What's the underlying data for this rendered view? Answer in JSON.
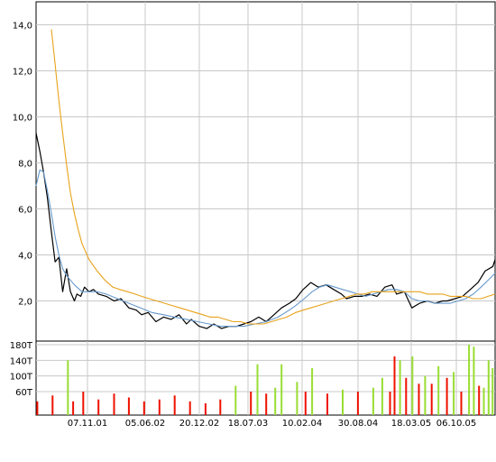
{
  "chart_data": [
    {
      "type": "line",
      "title": "",
      "xlabel": "",
      "ylabel": "",
      "ylim": [
        0.1,
        15.0
      ],
      "grid": true,
      "legend": "none",
      "x_tick_labels": [
        "07.11.01",
        "05.06.02",
        "20.12.02",
        "18.07.03",
        "10.02.04",
        "30.08.04",
        "18.03.05",
        "06.10.05"
      ],
      "y_tick_labels": [
        "2,0",
        "4,0",
        "6,0",
        "8,0",
        "10,0",
        "12,0",
        "14,0"
      ],
      "y_tick_values": [
        2,
        4,
        6,
        8,
        10,
        12,
        14
      ],
      "x_range": [
        "2001-04-10",
        "2006-04-15"
      ],
      "series": [
        {
          "color": "#000000",
          "x": [
            "2001-04-10",
            "2001-04-25",
            "2001-05-10",
            "2001-05-25",
            "2001-06-10",
            "2001-06-25",
            "2001-07-10",
            "2001-07-25",
            "2001-08-10",
            "2001-08-25",
            "2001-09-10",
            "2001-09-20",
            "2001-10-05",
            "2001-10-20",
            "2001-11-07",
            "2001-11-25",
            "2001-12-15",
            "2002-01-15",
            "2002-02-15",
            "2002-03-15",
            "2002-04-15",
            "2002-05-15",
            "2002-06-05",
            "2002-07-01",
            "2002-08-01",
            "2002-09-01",
            "2002-10-01",
            "2002-11-01",
            "2002-12-01",
            "2002-12-20",
            "2003-01-20",
            "2003-02-20",
            "2003-03-20",
            "2003-04-20",
            "2003-05-20",
            "2003-06-20",
            "2003-07-18",
            "2003-08-15",
            "2003-09-15",
            "2003-10-15",
            "2003-11-15",
            "2003-12-15",
            "2004-01-15",
            "2004-02-10",
            "2004-03-10",
            "2004-04-10",
            "2004-05-10",
            "2004-06-10",
            "2004-07-10",
            "2004-08-10",
            "2004-08-30",
            "2004-09-30",
            "2004-10-30",
            "2004-11-30",
            "2004-12-30",
            "2005-01-30",
            "2005-02-28",
            "2005-03-18",
            "2005-04-18",
            "2005-05-18",
            "2005-06-18",
            "2005-07-18",
            "2005-08-18",
            "2005-09-18",
            "2005-10-06",
            "2005-11-06",
            "2005-12-06",
            "2006-01-06",
            "2006-02-06",
            "2006-03-06",
            "2006-04-06",
            "2006-04-15"
          ],
          "values": [
            9.3,
            8.5,
            7.6,
            6.5,
            5.0,
            3.7,
            3.9,
            2.4,
            3.4,
            2.4,
            2.0,
            2.3,
            2.2,
            2.6,
            2.4,
            2.5,
            2.3,
            2.2,
            2.0,
            2.1,
            1.7,
            1.6,
            1.4,
            1.5,
            1.1,
            1.3,
            1.2,
            1.4,
            1.0,
            1.2,
            0.9,
            0.8,
            1.0,
            0.8,
            0.9,
            0.9,
            1.0,
            1.1,
            1.3,
            1.1,
            1.4,
            1.7,
            1.9,
            2.1,
            2.5,
            2.8,
            2.6,
            2.7,
            2.5,
            2.3,
            2.1,
            2.2,
            2.2,
            2.3,
            2.2,
            2.6,
            2.7,
            2.3,
            2.4,
            1.7,
            1.9,
            2.0,
            1.9,
            2.0,
            2.0,
            2.1,
            2.2,
            2.5,
            2.8,
            3.3,
            3.5,
            3.8
          ]
        },
        {
          "color": "#6699cc",
          "x": [
            "2001-04-10",
            "2001-04-25",
            "2001-05-10",
            "2001-05-25",
            "2001-06-10",
            "2001-06-25",
            "2001-07-10",
            "2001-07-25",
            "2001-08-10",
            "2001-09-10",
            "2001-10-10",
            "2001-11-07",
            "2001-12-10",
            "2002-01-15",
            "2002-03-01",
            "2002-04-15",
            "2002-06-01",
            "2002-07-15",
            "2002-09-01",
            "2002-10-15",
            "2002-12-01",
            "2003-01-15",
            "2003-03-01",
            "2003-04-15",
            "2003-06-01",
            "2003-07-18",
            "2003-09-01",
            "2003-10-15",
            "2003-12-01",
            "2004-01-15",
            "2004-02-10",
            "2004-03-15",
            "2004-04-15",
            "2004-05-15",
            "2004-06-15",
            "2004-07-15",
            "2004-08-15",
            "2004-09-15",
            "2004-10-15",
            "2004-11-15",
            "2004-12-15",
            "2005-01-15",
            "2005-02-15",
            "2005-03-18",
            "2005-04-18",
            "2005-05-18",
            "2005-06-18",
            "2005-07-18",
            "2005-08-18",
            "2005-09-18",
            "2005-10-18",
            "2005-11-18",
            "2005-12-18",
            "2006-01-18",
            "2006-02-18",
            "2006-03-18",
            "2006-04-15"
          ],
          "values": [
            7.0,
            7.7,
            7.6,
            6.8,
            5.8,
            4.8,
            4.0,
            3.4,
            3.1,
            2.7,
            2.4,
            2.4,
            2.4,
            2.3,
            2.1,
            1.9,
            1.7,
            1.5,
            1.4,
            1.3,
            1.2,
            1.1,
            1.0,
            0.9,
            0.9,
            0.9,
            1.0,
            1.1,
            1.3,
            1.6,
            1.8,
            2.1,
            2.4,
            2.6,
            2.7,
            2.6,
            2.5,
            2.4,
            2.3,
            2.2,
            2.3,
            2.4,
            2.5,
            2.5,
            2.4,
            2.1,
            2.0,
            2.0,
            1.9,
            1.9,
            1.9,
            2.0,
            2.1,
            2.3,
            2.6,
            2.9,
            3.2
          ]
        },
        {
          "color": "#e8a21a",
          "x": [
            "2001-06-10",
            "2001-06-25",
            "2001-07-10",
            "2001-07-25",
            "2001-08-10",
            "2001-08-25",
            "2001-09-10",
            "2001-09-25",
            "2001-10-10",
            "2001-11-07",
            "2001-12-10",
            "2002-01-10",
            "2002-02-10",
            "2002-03-10",
            "2002-04-10",
            "2002-05-10",
            "2002-06-05",
            "2002-07-05",
            "2002-08-05",
            "2002-09-05",
            "2002-10-05",
            "2002-11-05",
            "2002-12-05",
            "2003-01-05",
            "2003-02-05",
            "2003-03-05",
            "2003-04-05",
            "2003-05-05",
            "2003-06-05",
            "2003-07-05",
            "2003-08-05",
            "2003-09-05",
            "2003-10-05",
            "2003-11-05",
            "2003-12-05",
            "2004-01-05",
            "2004-02-10",
            "2004-03-10",
            "2004-04-10",
            "2004-05-10",
            "2004-06-10",
            "2004-07-10",
            "2004-08-10",
            "2004-09-10",
            "2004-10-10",
            "2004-11-10",
            "2004-12-10",
            "2005-01-10",
            "2005-02-10",
            "2005-03-18",
            "2005-04-18",
            "2005-05-18",
            "2005-06-18",
            "2005-07-18",
            "2005-08-18",
            "2005-09-18",
            "2005-10-18",
            "2005-11-18",
            "2005-12-18",
            "2006-01-18",
            "2006-02-18",
            "2006-03-18",
            "2006-04-15"
          ],
          "values": [
            13.8,
            12.3,
            10.7,
            9.3,
            7.9,
            6.7,
            5.8,
            5.1,
            4.5,
            3.8,
            3.3,
            2.9,
            2.6,
            2.5,
            2.4,
            2.3,
            2.2,
            2.1,
            2.0,
            1.9,
            1.8,
            1.7,
            1.6,
            1.5,
            1.4,
            1.3,
            1.3,
            1.2,
            1.1,
            1.1,
            1.0,
            1.0,
            1.0,
            1.1,
            1.2,
            1.3,
            1.5,
            1.6,
            1.7,
            1.8,
            1.9,
            2.0,
            2.1,
            2.2,
            2.3,
            2.3,
            2.4,
            2.4,
            2.4,
            2.4,
            2.4,
            2.4,
            2.4,
            2.3,
            2.3,
            2.3,
            2.2,
            2.2,
            2.2,
            2.1,
            2.1,
            2.2,
            2.3
          ]
        }
      ]
    },
    {
      "type": "bar",
      "title": "",
      "ylim": [
        0,
        180
      ],
      "y_tick_labels": [
        "60T",
        "100T",
        "140T",
        "180T"
      ],
      "y_tick_values": [
        60,
        100,
        140,
        180
      ],
      "x_tick_labels": [
        "07.11.01",
        "05.06.02",
        "20.12.02",
        "18.07.03",
        "10.02.04",
        "30.08.04",
        "18.03.05",
        "06.10.05"
      ],
      "up_color": "#99dd33",
      "down_color": "#ee1100",
      "x": [
        "2001-04-15",
        "2001-06-15",
        "2001-08-15",
        "2001-09-05",
        "2001-10-15",
        "2001-12-15",
        "2002-02-15",
        "2002-04-15",
        "2002-06-15",
        "2002-08-15",
        "2002-10-15",
        "2002-12-15",
        "2003-02-15",
        "2003-04-15",
        "2003-06-15",
        "2003-08-15",
        "2003-09-10",
        "2003-10-15",
        "2003-11-20",
        "2003-12-15",
        "2004-02-15",
        "2004-03-20",
        "2004-04-15",
        "2004-06-15",
        "2004-08-15",
        "2004-10-15",
        "2004-12-15",
        "2005-01-20",
        "2005-02-20",
        "2005-03-10",
        "2005-04-01",
        "2005-04-25",
        "2005-05-20",
        "2005-06-15",
        "2005-07-10",
        "2005-08-05",
        "2005-09-01",
        "2005-10-05",
        "2005-11-01",
        "2005-12-01",
        "2006-01-01",
        "2006-01-20",
        "2006-02-10",
        "2006-03-01",
        "2006-03-20",
        "2006-04-05"
      ],
      "values": [
        35,
        50,
        140,
        35,
        60,
        40,
        55,
        45,
        35,
        40,
        50,
        35,
        30,
        40,
        75,
        60,
        130,
        55,
        70,
        130,
        85,
        60,
        120,
        55,
        65,
        60,
        70,
        95,
        60,
        150,
        140,
        95,
        150,
        80,
        100,
        80,
        125,
        95,
        110,
        60,
        180,
        175,
        75,
        70,
        140,
        120
      ],
      "directions": [
        "down",
        "down",
        "up",
        "down",
        "down",
        "down",
        "down",
        "down",
        "down",
        "down",
        "down",
        "down",
        "down",
        "down",
        "up",
        "down",
        "up",
        "down",
        "up",
        "up",
        "up",
        "down",
        "up",
        "down",
        "up",
        "down",
        "up",
        "up",
        "down",
        "down",
        "up",
        "down",
        "up",
        "down",
        "up",
        "down",
        "up",
        "down",
        "up",
        "down",
        "up",
        "up",
        "down",
        "up",
        "up",
        "up"
      ]
    }
  ]
}
